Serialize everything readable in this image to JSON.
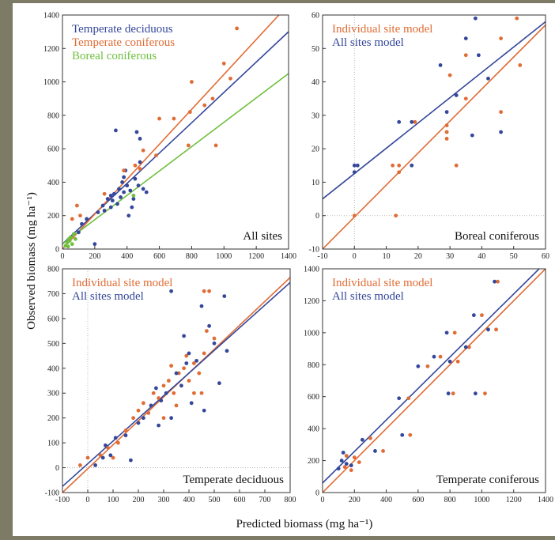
{
  "ylabel": "Observed biomass (mg ha⁻¹)",
  "xlabel": "Predicted biomass (mg ha⁻¹)",
  "chart_data": [
    {
      "type": "scatter",
      "panel_label": "All sites",
      "xlim": [
        0,
        1400
      ],
      "ylim": [
        0,
        1400
      ],
      "xticks": [
        0,
        200,
        400,
        600,
        800,
        1000,
        1200,
        1400
      ],
      "yticks": [
        0,
        200,
        400,
        600,
        800,
        1000,
        1200,
        1400
      ],
      "zero_lines": false,
      "series": [
        {
          "name": "Temperate deciduous",
          "color": "#34479a",
          "x": [
            330,
            460,
            480,
            200,
            100,
            150,
            220,
            250,
            280,
            300,
            320,
            350,
            370,
            380,
            400,
            420,
            440,
            450,
            470,
            390,
            300,
            260,
            340,
            360,
            410,
            500,
            520,
            430,
            310,
            380,
            480,
            120
          ],
          "values": [
            710,
            700,
            660,
            30,
            100,
            180,
            220,
            260,
            300,
            250,
            330,
            360,
            400,
            430,
            380,
            350,
            300,
            420,
            380,
            470,
            320,
            230,
            270,
            310,
            200,
            360,
            340,
            250,
            290,
            340,
            520,
            150
          ],
          "fit": {
            "x": [
              0,
              1400
            ],
            "values": [
              30,
              1300
            ]
          }
        },
        {
          "name": "Temperate coniferous",
          "color": "#e06c35",
          "x": [
            1080,
            1000,
            1040,
            800,
            880,
            790,
            930,
            950,
            780,
            690,
            600,
            500,
            580,
            450,
            260,
            90,
            60,
            110,
            380,
            480
          ],
          "values": [
            1320,
            1110,
            1020,
            1000,
            860,
            820,
            900,
            620,
            620,
            780,
            780,
            590,
            560,
            500,
            330,
            260,
            180,
            200,
            470,
            480
          ],
          "fit": {
            "x": [
              0,
              1340
            ],
            "values": [
              0,
              1400
            ]
          }
        },
        {
          "name": "Boreal coniferous",
          "color": "#6fbf3f",
          "x": [
            20,
            30,
            40,
            50,
            60,
            70,
            45,
            35,
            80,
            440
          ],
          "values": [
            20,
            40,
            60,
            70,
            30,
            90,
            50,
            15,
            60,
            320
          ],
          "fit": {
            "x": [
              0,
              1400
            ],
            "values": [
              30,
              1050
            ]
          }
        }
      ]
    },
    {
      "type": "scatter",
      "panel_label": "Boreal coniferous",
      "xlim": [
        -10,
        60
      ],
      "ylim": [
        -10,
        60
      ],
      "xticks": [
        -10,
        0,
        10,
        20,
        30,
        40,
        50,
        60
      ],
      "yticks": [
        -10,
        0,
        10,
        20,
        30,
        40,
        50,
        60
      ],
      "zero_lines": true,
      "series": [
        {
          "name": "Individual site model",
          "color": "#e06c35",
          "x": [
            12,
            14,
            13,
            0,
            14,
            19,
            29,
            29,
            29,
            30,
            32,
            35,
            35,
            46,
            46,
            51,
            52
          ],
          "values": [
            15,
            15,
            0,
            0,
            13,
            28,
            27,
            25,
            23,
            42,
            15,
            35,
            48,
            53,
            31,
            59,
            45
          ],
          "fit": {
            "x": [
              -10,
              60
            ],
            "values": [
              -10,
              57
            ]
          }
        },
        {
          "name": "All sites model",
          "color": "#34479a",
          "x": [
            0,
            1,
            0,
            14,
            18,
            18,
            27,
            29,
            32,
            35,
            37,
            38,
            39,
            42,
            46
          ],
          "values": [
            15,
            15,
            13,
            28,
            15,
            28,
            45,
            31,
            36,
            53,
            24,
            59,
            48,
            41,
            25
          ],
          "fit": {
            "x": [
              -10,
              60
            ],
            "values": [
              5,
              58
            ]
          }
        }
      ]
    },
    {
      "type": "scatter",
      "panel_label": "Temperate deciduous",
      "xlim": [
        -100,
        800
      ],
      "ylim": [
        -100,
        800
      ],
      "xticks": [
        -100,
        0,
        100,
        200,
        300,
        400,
        500,
        600,
        700,
        800
      ],
      "yticks": [
        -100,
        0,
        100,
        200,
        300,
        400,
        500,
        600,
        700,
        800
      ],
      "zero_lines": true,
      "series": [
        {
          "name": "Individual site model",
          "color": "#e06c35",
          "x": [
            -30,
            0,
            50,
            80,
            100,
            120,
            150,
            180,
            200,
            220,
            240,
            260,
            280,
            300,
            320,
            340,
            360,
            380,
            400,
            420,
            440,
            460,
            470,
            480,
            460,
            500,
            350,
            300,
            420,
            390,
            330,
            450
          ],
          "values": [
            10,
            40,
            50,
            80,
            40,
            100,
            150,
            200,
            230,
            260,
            220,
            300,
            280,
            330,
            350,
            300,
            380,
            400,
            350,
            420,
            380,
            460,
            550,
            710,
            710,
            520,
            250,
            200,
            300,
            450,
            410,
            300
          ],
          "fit": {
            "x": [
              -100,
              800
            ],
            "values": [
              -100,
              765
            ]
          }
        },
        {
          "name": "All sites model",
          "color": "#34479a",
          "x": [
            30,
            60,
            70,
            90,
            110,
            150,
            170,
            200,
            220,
            250,
            270,
            290,
            310,
            330,
            350,
            370,
            390,
            400,
            430,
            450,
            480,
            500,
            520,
            540,
            550,
            280,
            330,
            410,
            460,
            380
          ],
          "values": [
            10,
            40,
            90,
            50,
            120,
            130,
            30,
            180,
            200,
            250,
            320,
            270,
            300,
            710,
            380,
            330,
            420,
            460,
            430,
            650,
            570,
            500,
            340,
            690,
            470,
            170,
            200,
            260,
            230,
            530
          ],
          "fit": {
            "x": [
              -100,
              800
            ],
            "values": [
              -75,
              745
            ]
          }
        }
      ]
    },
    {
      "type": "scatter",
      "panel_label": "Temperate coniferous",
      "xlim": [
        0,
        1400
      ],
      "ylim": [
        0,
        1400
      ],
      "xticks": [
        0,
        200,
        400,
        600,
        800,
        1000,
        1200,
        1400
      ],
      "yticks": [
        0,
        200,
        400,
        600,
        800,
        1000,
        1200,
        1400
      ],
      "zero_lines": false,
      "series": [
        {
          "name": "Individual site model",
          "color": "#e06c35",
          "x": [
            140,
            150,
            180,
            200,
            230,
            300,
            380,
            540,
            550,
            660,
            740,
            820,
            830,
            850,
            920,
            1000,
            1020,
            1100,
            1090
          ],
          "values": [
            160,
            230,
            140,
            220,
            190,
            340,
            260,
            590,
            360,
            790,
            850,
            620,
            1000,
            820,
            910,
            1110,
            620,
            1320,
            1020
          ],
          "fit": {
            "x": [
              0,
              1400
            ],
            "values": [
              0,
              1400
            ]
          }
        },
        {
          "name": "All sites model",
          "color": "#34479a",
          "x": [
            100,
            120,
            150,
            130,
            180,
            250,
            330,
            480,
            500,
            600,
            700,
            790,
            780,
            800,
            900,
            950,
            960,
            1080,
            1040
          ],
          "values": [
            150,
            200,
            180,
            250,
            170,
            330,
            260,
            590,
            360,
            790,
            850,
            620,
            1000,
            820,
            910,
            1110,
            620,
            1320,
            1020
          ],
          "fit": {
            "x": [
              0,
              1360
            ],
            "values": [
              60,
              1400
            ]
          }
        }
      ]
    }
  ]
}
